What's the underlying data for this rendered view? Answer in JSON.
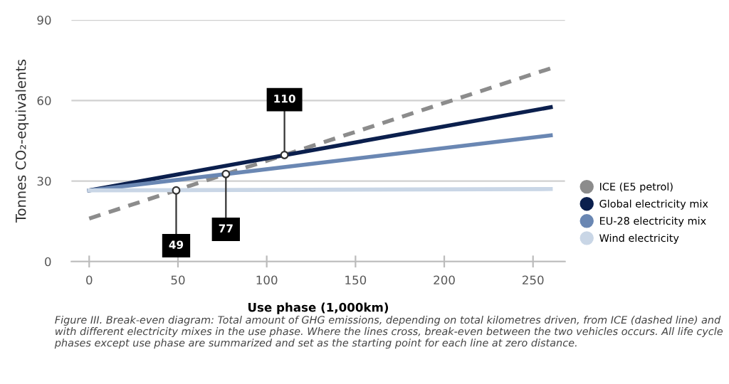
{
  "chart_data": {
    "type": "line",
    "xlabel": "Use phase (1,000km)",
    "ylabel": "Tonnes CO₂-equivalents",
    "x": [
      0,
      260
    ],
    "series": [
      {
        "name": "ICE (E5 petrol)",
        "color": "#8c8c8c",
        "values": [
          16,
          72
        ],
        "line_style": "dashed"
      },
      {
        "name": "Global electricity mix",
        "color": "#0b1f4d",
        "values": [
          26.5,
          57.5
        ]
      },
      {
        "name": "EU-28 electricity mix",
        "color": "#6a87b3",
        "values": [
          26.5,
          47
        ]
      },
      {
        "name": "Wind electricity",
        "color": "#c9d6e6",
        "values": [
          26.5,
          27
        ]
      }
    ],
    "xlim": [
      -10,
      268
    ],
    "xticks": [
      0,
      50,
      100,
      150,
      200,
      250
    ],
    "ylim": [
      0,
      90
    ],
    "yticks": [
      0,
      30,
      60,
      90
    ],
    "grid": "y",
    "legend": "right",
    "marker": "none",
    "annotations": [
      {
        "text": "49",
        "x": 49,
        "y": 26.5
      },
      {
        "text": "77",
        "x": 77,
        "y": 32.6
      },
      {
        "text": "110",
        "x": 110,
        "y": 39.7
      },
      "Figure III. Break-even diagram: Total amount of GHG emissions, depending on total kilometres driven, from ICE (dashed line) and with different electricity mixes in the use phase. Where the lines cross, break-even between the two vehicles occurs. All life cycle phases except use phase are summarized and set as the starting point for each line at zero distance."
    ]
  }
}
